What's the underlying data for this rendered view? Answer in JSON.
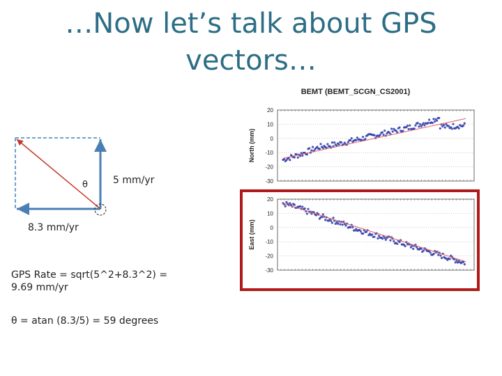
{
  "slide": {
    "title_line1": "…Now let’s talk about GPS",
    "title_line2": "vectors…"
  },
  "diagram": {
    "north_label": "5 mm/yr",
    "east_label": "8.3 mm/yr",
    "theta_label": "θ"
  },
  "calc": {
    "rate_line1": "GPS Rate = sqrt(5^2+8.3^2) =",
    "rate_line2": "9.69 mm/yr",
    "theta_line": "θ = atan (8.3/5) = 59 degrees"
  },
  "colors": {
    "title": "#2d6d85",
    "arrow_blue": "#4a7fb5",
    "arrow_red": "#c0392b",
    "data_points": "#2b3aa8",
    "fit_line": "#e06060",
    "highlight_box": "#b01a1a"
  },
  "chart_data": {
    "type": "scatter",
    "title": "BEMT (BEMT_SCGN_CS2001)",
    "panels": [
      {
        "name": "north",
        "ylabel": "North (mm)",
        "ylim": [
          -30,
          20
        ],
        "yticks": [
          "20",
          "10",
          "0",
          "-10",
          "-20",
          "-30"
        ],
        "ytick_values": [
          20,
          10,
          0,
          -10,
          -20,
          -30
        ],
        "series": [
          {
            "x": [
              0,
              0.1,
              0.2,
              0.3,
              0.4,
              0.5,
              0.6,
              0.7,
              0.8,
              0.86
            ],
            "values": [
              -15,
              -11,
              -6,
              -4,
              -1,
              2,
              5,
              8,
              12,
              15
            ]
          },
          {
            "x": [
              0.86,
              0.9,
              0.95,
              1.0
            ],
            "values": [
              9,
              8,
              9,
              9
            ]
          }
        ],
        "fit": {
          "x": [
            0,
            1
          ],
          "values": [
            -14,
            14
          ]
        }
      },
      {
        "name": "east",
        "ylabel": "East (mm)",
        "ylim": [
          -30,
          20
        ],
        "yticks": [
          "20",
          "10",
          "0",
          "-10",
          "-20",
          "-30"
        ],
        "ytick_values": [
          20,
          10,
          0,
          -10,
          -20,
          -30
        ],
        "series": [
          {
            "x": [
              0,
              0.1,
              0.2,
              0.3,
              0.4,
              0.5,
              0.6,
              0.7,
              0.8,
              0.9,
              1.0
            ],
            "values": [
              17,
              13,
              8,
              4,
              -1,
              -5,
              -9,
              -13,
              -17,
              -21,
              -25
            ]
          }
        ],
        "fit": {
          "x": [
            0,
            1
          ],
          "values": [
            17,
            -24
          ]
        }
      }
    ]
  }
}
